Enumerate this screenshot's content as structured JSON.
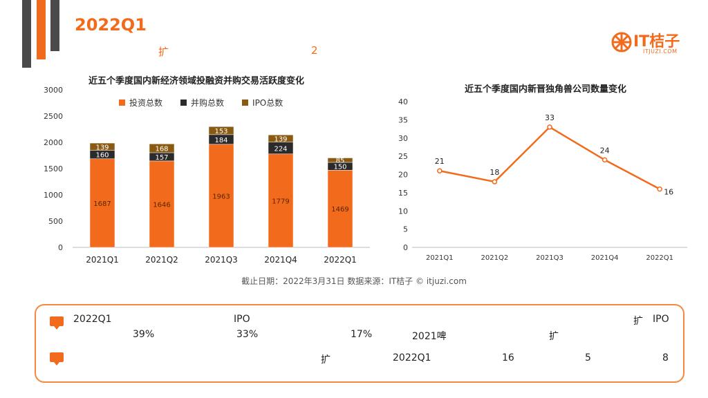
{
  "header": {
    "title": "2022Q1",
    "subtitle_char": "扩",
    "subtitle_num": "2"
  },
  "logo": {
    "name": "IT桔子",
    "url": "ITJUZI.COM"
  },
  "colors": {
    "invest": "#f26a1b",
    "merger": "#2b2b2b",
    "ipo": "#8a5a12",
    "accent": "#f26a1b",
    "deco": "#4a4a4a"
  },
  "chart_data": [
    {
      "type": "bar",
      "title": "近五个季度国内新经济领域投融资并购交易活跃度变化",
      "categories": [
        "2021Q1",
        "2021Q2",
        "2021Q3",
        "2021Q4",
        "2022Q1"
      ],
      "series": [
        {
          "name": "投资总数",
          "values": [
            1687,
            1646,
            1963,
            1779,
            1469
          ]
        },
        {
          "name": "并购总数",
          "values": [
            160,
            157,
            184,
            224,
            150
          ]
        },
        {
          "name": "IPO总数",
          "values": [
            139,
            168,
            153,
            139,
            85
          ]
        }
      ],
      "stacked": true,
      "ylim": [
        0,
        3000
      ],
      "yticks": [
        0,
        500,
        1000,
        1500,
        2000,
        2500,
        3000
      ],
      "legend": "top"
    },
    {
      "type": "line",
      "title": "近五个季度国内新晋独角兽公司数量变化",
      "categories": [
        "2021Q1",
        "2021Q2",
        "2021Q3",
        "2021Q4",
        "2022Q1"
      ],
      "values": [
        21,
        18,
        33,
        24,
        16
      ],
      "ylim": [
        0,
        40
      ],
      "yticks": [
        0,
        5,
        10,
        15,
        20,
        25,
        30,
        35,
        40
      ]
    }
  ],
  "source": "截止日期：2022年3月31日    数据来源：IT桔子 © itjuzi.com",
  "summary": {
    "line1_a": "2022Q1",
    "line1_b": "IPO",
    "line1_c": "扩",
    "line1_d": "IPO",
    "line2_a": "39%",
    "line2_b": "33%",
    "line2_c": "17%",
    "line2_d": "2021啤",
    "line2_e": "扩",
    "line3_a": "扩",
    "line3_b": "2022Q1",
    "line3_c": "16",
    "line3_d": "5",
    "line3_e": "8"
  }
}
